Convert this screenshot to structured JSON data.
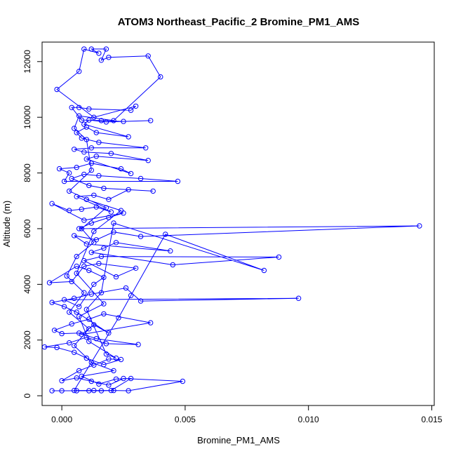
{
  "chart_data": {
    "type": "scatter",
    "title": "ATOM3 Northeast_Pacific_2 Bromine_PM1_AMS",
    "xlabel": "Bromine_PM1_AMS",
    "ylabel": "Altitude (m)",
    "xlim": [
      -0.0008,
      0.0151
    ],
    "ylim": [
      -350,
      12700
    ],
    "x_ticks": [
      0.0,
      0.005,
      0.01,
      0.015
    ],
    "x_tick_labels": [
      "0.000",
      "0.005",
      "0.010",
      "0.015"
    ],
    "y_ticks": [
      0,
      2000,
      4000,
      6000,
      8000,
      10000,
      12000
    ],
    "y_tick_labels": [
      "0",
      "2000",
      "4000",
      "6000",
      "8000",
      "10000",
      "12000"
    ],
    "grid": false,
    "connected": true,
    "marker": "open-circle",
    "color": "#0000ff",
    "series": [
      {
        "points": [
          [
            -0.0004,
            180
          ],
          [
            0.0,
            180
          ],
          [
            0.0006,
            180
          ],
          [
            0.0011,
            180
          ],
          [
            0.0016,
            180
          ],
          [
            0.0021,
            190
          ],
          [
            0.0027,
            180
          ],
          [
            0.0049,
            520
          ],
          [
            0.0025,
            620
          ],
          [
            0.0019,
            380
          ],
          [
            0.0012,
            520
          ],
          [
            0.0006,
            640
          ],
          [
            0.0,
            540
          ],
          [
            0.0007,
            900
          ],
          [
            0.0013,
            1100
          ],
          [
            0.0019,
            1320
          ],
          [
            0.0024,
            1300
          ],
          [
            0.0017,
            1120
          ],
          [
            0.001,
            1350
          ],
          [
            0.0005,
            1560
          ],
          [
            -0.0002,
            1730
          ],
          [
            -0.0007,
            1750
          ],
          [
            0.0003,
            1900
          ],
          [
            0.001,
            2100
          ],
          [
            0.0018,
            1870
          ],
          [
            0.0031,
            1840
          ],
          [
            0.0014,
            2050
          ],
          [
            0.0007,
            2250
          ],
          [
            0.0,
            2230
          ],
          [
            -0.0003,
            2350
          ],
          [
            0.0004,
            2580
          ],
          [
            0.0011,
            2750
          ],
          [
            0.0017,
            2940
          ],
          [
            0.0036,
            2620
          ],
          [
            0.0008,
            2200
          ],
          [
            0.0013,
            2550
          ],
          [
            0.0019,
            2250
          ],
          [
            0.0006,
            3000
          ],
          [
            0.0001,
            3200
          ],
          [
            -0.0004,
            3350
          ],
          [
            0.0005,
            3500
          ],
          [
            0.0012,
            3650
          ],
          [
            0.0026,
            3870
          ],
          [
            0.0032,
            3400
          ],
          [
            0.0096,
            3500
          ],
          [
            0.0001,
            3450
          ],
          [
            0.0007,
            3200
          ],
          [
            0.0013,
            4000
          ],
          [
            0.0017,
            4250
          ],
          [
            0.0011,
            4500
          ],
          [
            0.0006,
            4650
          ],
          [
            -0.0005,
            4060
          ],
          [
            0.0004,
            4100
          ],
          [
            0.0009,
            4650
          ],
          [
            0.0015,
            4750
          ],
          [
            0.003,
            4580
          ],
          [
            0.0022,
            4270
          ],
          [
            0.0009,
            4850
          ],
          [
            0.0016,
            5000
          ],
          [
            0.0088,
            4980
          ],
          [
            0.0045,
            4700
          ],
          [
            0.0012,
            5150
          ],
          [
            0.0017,
            5300
          ],
          [
            0.0022,
            5500
          ],
          [
            0.0044,
            5200
          ],
          [
            0.001,
            5450
          ],
          [
            0.0005,
            5750
          ],
          [
            0.0014,
            5600
          ],
          [
            0.0021,
            5880
          ],
          [
            0.0032,
            5720
          ],
          [
            0.0145,
            6100
          ],
          [
            0.0007,
            6000
          ],
          [
            0.0012,
            6200
          ],
          [
            0.0019,
            6400
          ],
          [
            0.0025,
            6560
          ],
          [
            0.0009,
            6300
          ],
          [
            -0.0004,
            6900
          ],
          [
            0.0003,
            6650
          ],
          [
            0.0008,
            6700
          ],
          [
            0.0014,
            6780
          ],
          [
            0.002,
            6600
          ],
          [
            0.0006,
            7150
          ],
          [
            0.0013,
            7200
          ],
          [
            0.0019,
            7050
          ],
          [
            0.0027,
            7400
          ],
          [
            0.0037,
            7350
          ],
          [
            0.0017,
            7450
          ],
          [
            0.0011,
            7550
          ],
          [
            0.0004,
            7800
          ],
          [
            0.0009,
            7950
          ],
          [
            0.0015,
            7900
          ],
          [
            0.0032,
            7800
          ],
          [
            0.0047,
            7700
          ],
          [
            0.0001,
            7700
          ],
          [
            0.0003,
            8000
          ],
          [
            -0.0001,
            8150
          ],
          [
            0.0006,
            8200
          ],
          [
            0.0012,
            8350
          ],
          [
            0.0024,
            8150
          ],
          [
            0.0028,
            7980
          ],
          [
            0.001,
            8500
          ],
          [
            0.0014,
            8600
          ],
          [
            0.0035,
            8450
          ],
          [
            0.002,
            8700
          ],
          [
            0.0009,
            8750
          ],
          [
            0.0005,
            8850
          ],
          [
            0.0012,
            8900
          ],
          [
            0.0034,
            8900
          ],
          [
            0.0015,
            9100
          ],
          [
            0.0008,
            9250
          ],
          [
            0.0006,
            9450
          ],
          [
            0.001,
            9650
          ],
          [
            0.0014,
            9450
          ],
          [
            0.0027,
            9300
          ],
          [
            0.0009,
            9750
          ],
          [
            0.0011,
            9900
          ],
          [
            0.0018,
            9830
          ],
          [
            0.0036,
            9880
          ],
          [
            0.0025,
            9850
          ],
          [
            0.0016,
            9880
          ],
          [
            0.0008,
            9900
          ],
          [
            0.0004,
            10350
          ],
          [
            0.0007,
            10350
          ],
          [
            0.0011,
            10300
          ],
          [
            0.0028,
            10250
          ],
          [
            0.003,
            10400
          ],
          [
            0.0013,
            10000
          ],
          [
            -0.0002,
            11000
          ],
          [
            0.0007,
            11650
          ],
          [
            0.0009,
            12450
          ],
          [
            0.0015,
            12300
          ],
          [
            0.0012,
            12450
          ],
          [
            0.0018,
            12450
          ],
          [
            0.0016,
            12050
          ],
          [
            0.0019,
            12150
          ],
          [
            0.0035,
            12200
          ],
          [
            0.004,
            11450
          ],
          [
            0.0021,
            9880
          ],
          [
            0.0007,
            10050
          ],
          [
            0.0005,
            9600
          ],
          [
            0.001,
            9200
          ],
          [
            0.0012,
            8100
          ],
          [
            0.0003,
            7350
          ],
          [
            0.0018,
            6750
          ],
          [
            0.0008,
            6000
          ],
          [
            0.0013,
            5500
          ],
          [
            0.0006,
            5000
          ],
          [
            0.0002,
            4300
          ],
          [
            0.0009,
            3700
          ],
          [
            0.0003,
            3000
          ],
          [
            0.0011,
            2400
          ],
          [
            0.0005,
            1800
          ],
          [
            0.0012,
            1200
          ],
          [
            0.0021,
            900
          ],
          [
            0.0008,
            700
          ],
          [
            0.0015,
            420
          ],
          [
            0.0022,
            600
          ],
          [
            0.0028,
            620
          ],
          [
            0.002,
            190
          ],
          [
            0.0013,
            190
          ],
          [
            0.0005,
            190
          ],
          [
            0.0023,
            2800
          ],
          [
            0.0028,
            3600
          ],
          [
            0.0042,
            5800
          ],
          [
            0.0082,
            4500
          ],
          [
            0.0021,
            6200
          ],
          [
            0.0016,
            3700
          ],
          [
            0.001,
            3100
          ],
          [
            0.0018,
            1500
          ],
          [
            0.0022,
            1350
          ],
          [
            0.0011,
            1950
          ],
          [
            0.0007,
            2850
          ],
          [
            0.0017,
            3300
          ],
          [
            0.0006,
            4400
          ],
          [
            0.0013,
            5900
          ],
          [
            0.0024,
            6650
          ],
          [
            0.001,
            7050
          ]
        ]
      }
    ]
  }
}
